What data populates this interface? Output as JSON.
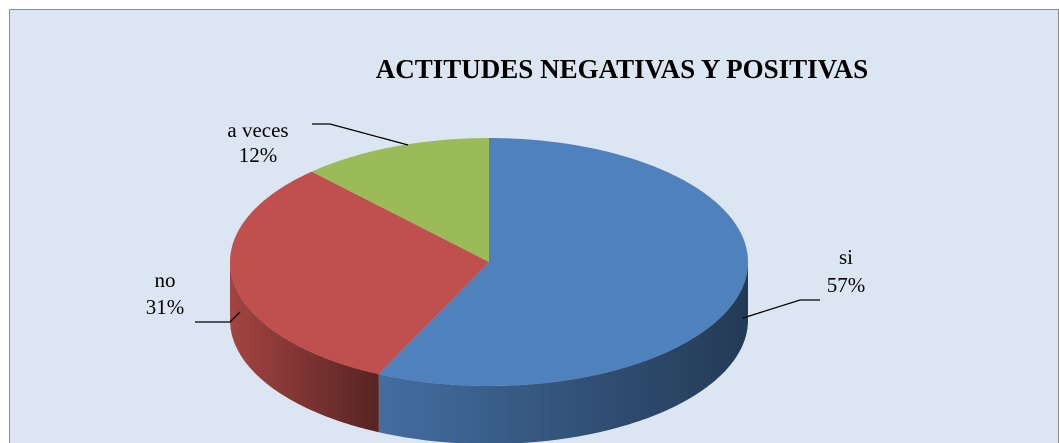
{
  "chart_data": {
    "type": "pie3d",
    "title": "ACTITUDES NEGATIVAS Y POSITIVAS",
    "categories": [
      "si",
      "no",
      "a veces"
    ],
    "values": [
      57,
      31,
      12
    ],
    "value_labels": [
      "57%",
      "31%",
      "12%"
    ],
    "colors": [
      "#4f81bd",
      "#c0504d",
      "#9bbb59"
    ]
  }
}
